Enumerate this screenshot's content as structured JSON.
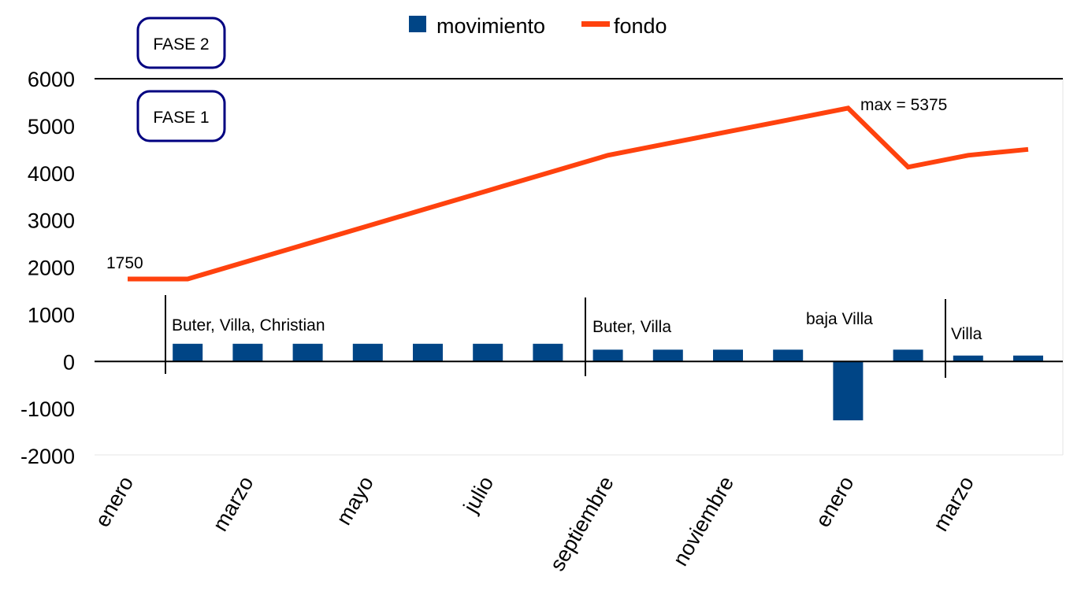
{
  "chart_data": {
    "type": "bar",
    "title": "",
    "xlabel": "",
    "ylabel": "",
    "ylim": [
      -2000,
      6000
    ],
    "yticks": [
      6000,
      5000,
      4000,
      3000,
      2000,
      1000,
      0,
      -1000,
      -2000
    ],
    "x_tick_labels": [
      "enero",
      "marzo",
      "mayo",
      "julio",
      "septiembre",
      "noviembre",
      "enero",
      "marzo"
    ],
    "legend_position": "top",
    "series": [
      {
        "name": "movimiento",
        "type": "bar",
        "color": "#004586",
        "values": [
          null,
          375,
          375,
          375,
          375,
          375,
          375,
          375,
          250,
          250,
          250,
          250,
          -1250,
          250,
          125,
          125
        ]
      },
      {
        "name": "fondo",
        "type": "line",
        "color": "#ff420e",
        "values": [
          1750,
          1750,
          2125,
          2500,
          2875,
          3250,
          3625,
          4000,
          4375,
          4625,
          4875,
          5125,
          5375,
          4125,
          4375,
          4500
        ]
      }
    ],
    "annotations": {
      "start_value": "1750",
      "max_label": "max = 5375",
      "phase_labels": [
        "FASE 2",
        "FASE 1"
      ],
      "groups": [
        "Buter, Villa, Christian",
        "Buter, Villa",
        "baja Villa",
        "Villa"
      ]
    }
  }
}
